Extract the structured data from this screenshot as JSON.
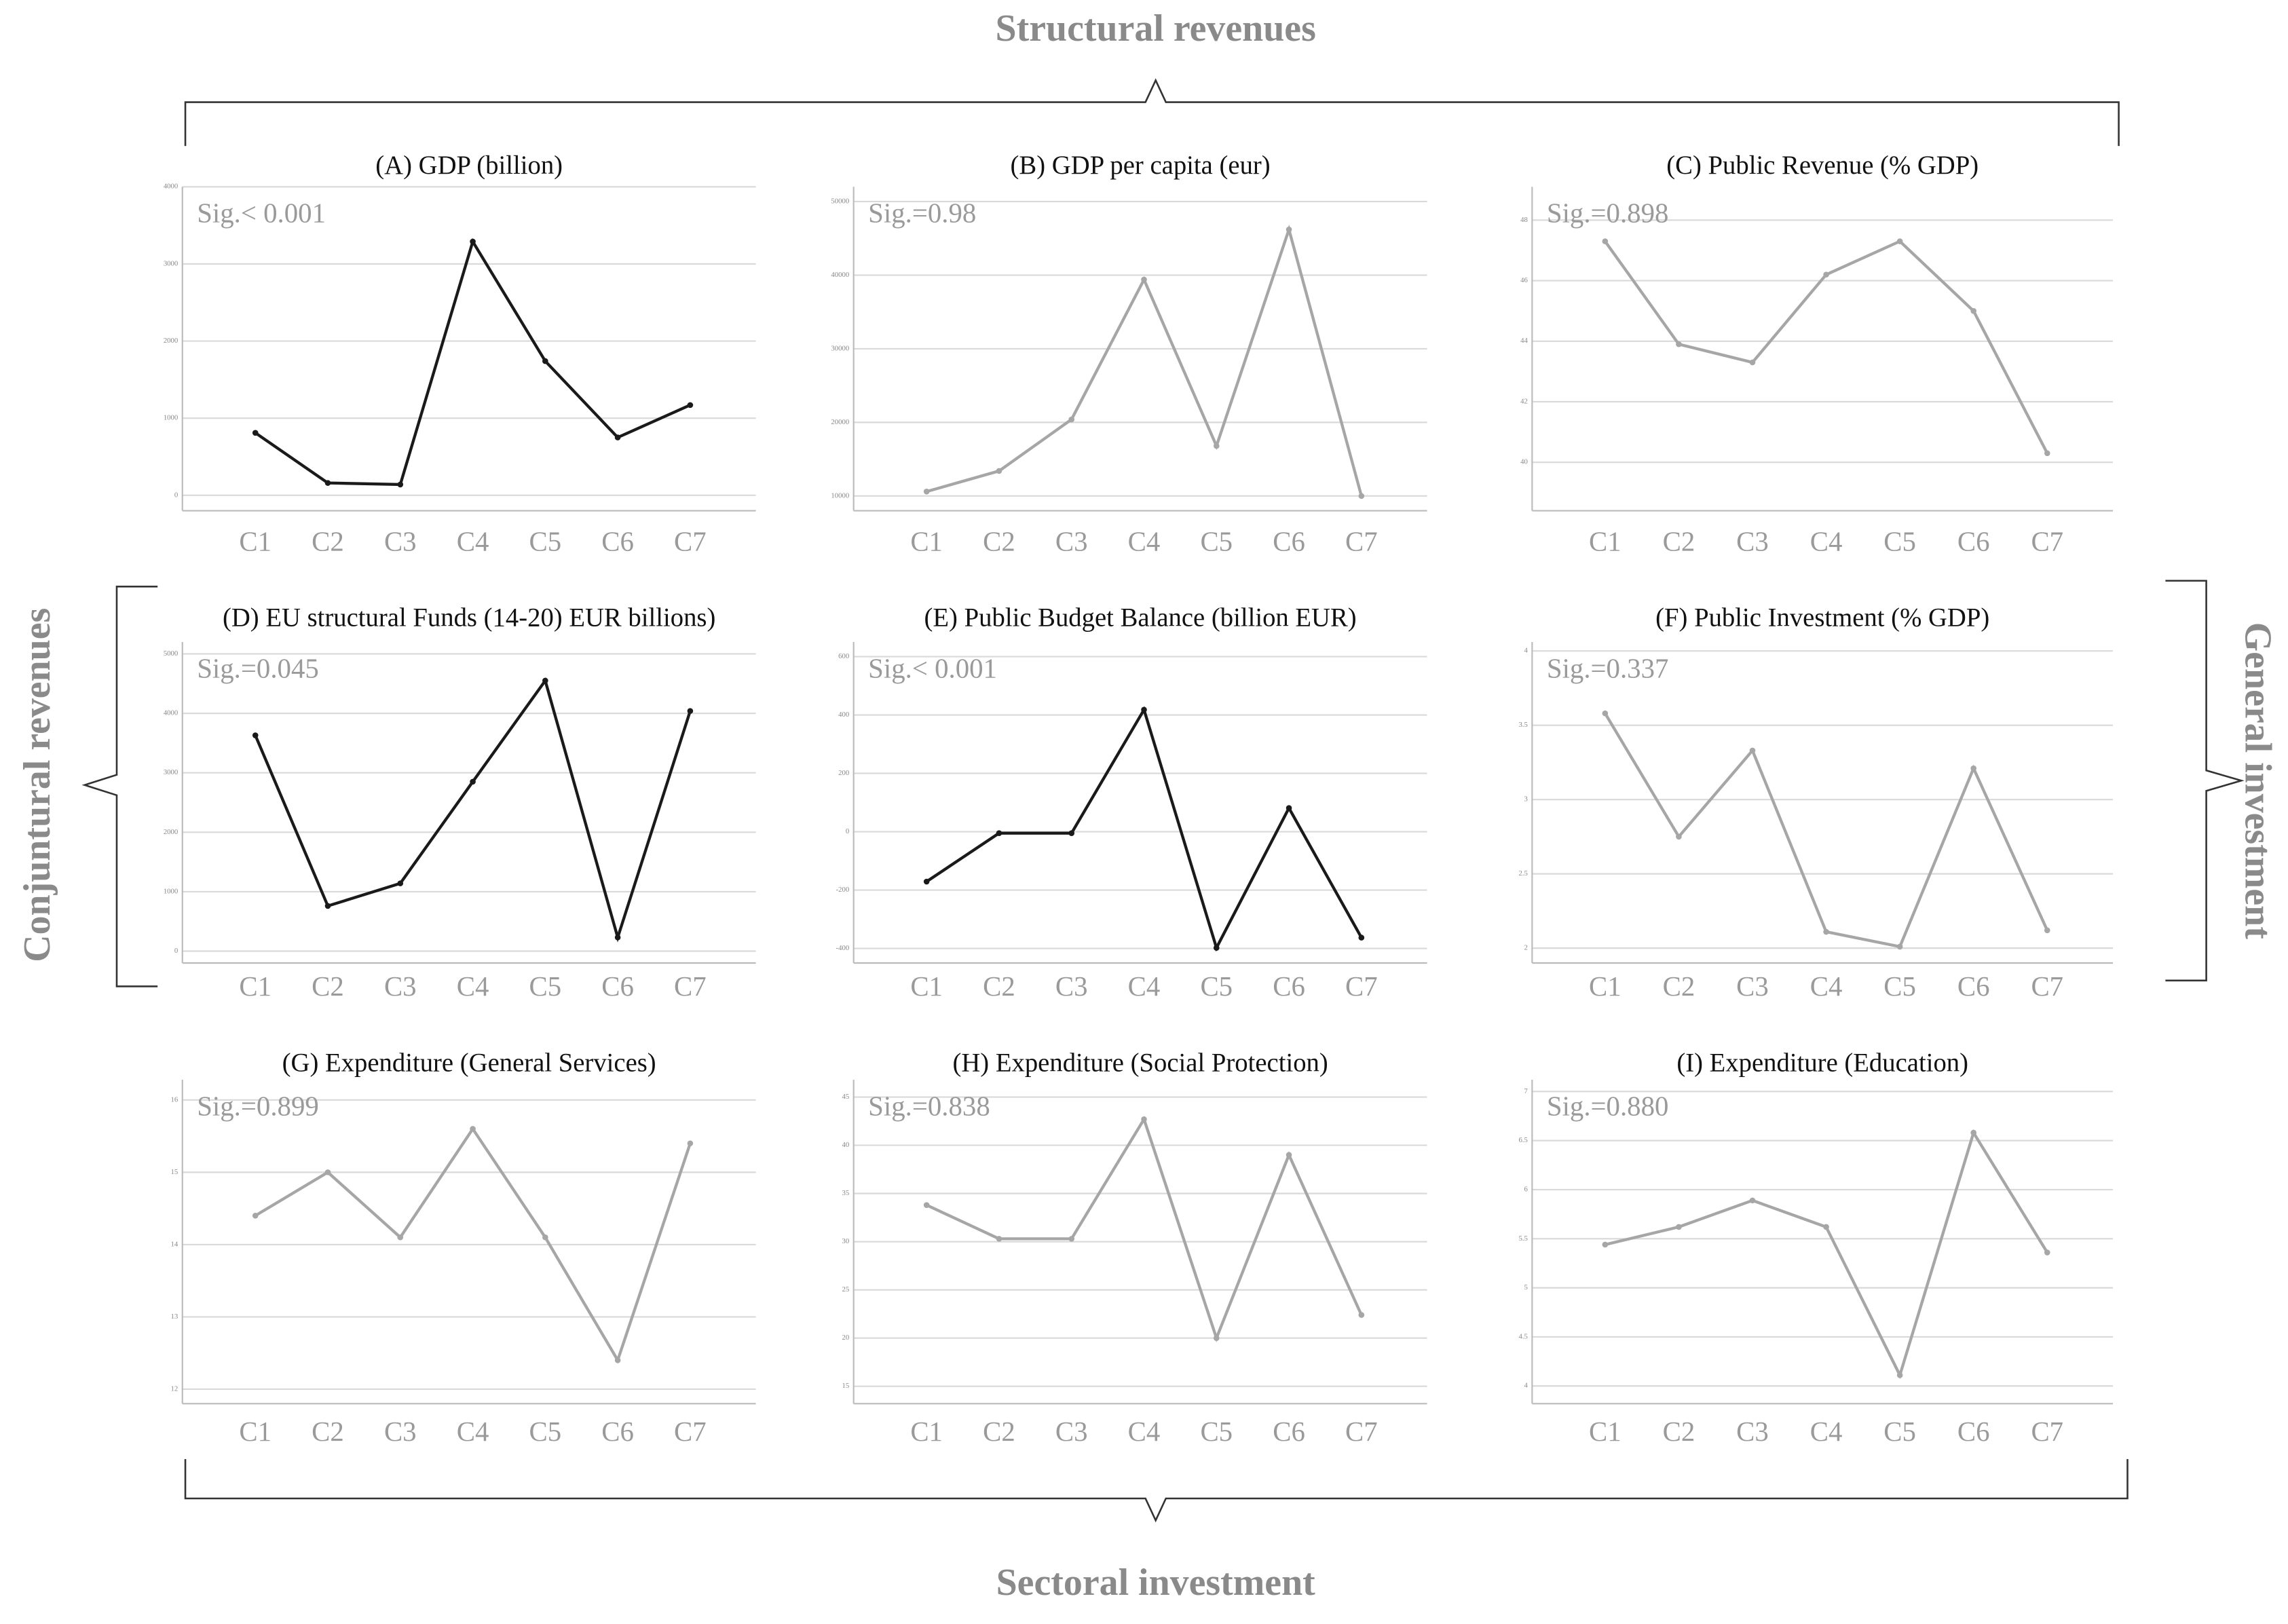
{
  "group_labels": {
    "top": "Structural revenues",
    "left": "Conjuntural revenues",
    "right": "General investment",
    "bottom": "Sectoral investment"
  },
  "chart_data": [
    {
      "type": "line",
      "title": "(A) GDP (billion)",
      "annotation": "Sig.< 0.001",
      "color": "#1a1a1a",
      "categories": [
        "C1",
        "C2",
        "C3",
        "C4",
        "C5",
        "C6",
        "C7"
      ],
      "values": [
        810,
        160,
        140,
        3290,
        1740,
        750,
        1170
      ],
      "ylim": [
        -200,
        4000
      ],
      "yticks": [
        0,
        1000,
        2000,
        3000,
        4000
      ],
      "grid": true
    },
    {
      "type": "line",
      "title": "(B) GDP per capita (eur)",
      "annotation": "Sig.=0.98",
      "color": "#a6a6a6",
      "categories": [
        "C1",
        "C2",
        "C3",
        "C4",
        "C5",
        "C6",
        "C7"
      ],
      "values": [
        10600,
        13400,
        20400,
        39400,
        16800,
        46200,
        10000
      ],
      "ylim": [
        8000,
        52000
      ],
      "yticks": [
        10000,
        20000,
        30000,
        40000,
        50000
      ],
      "grid": true
    },
    {
      "type": "line",
      "title": "(C) Public Revenue (% GDP)",
      "annotation": "Sig.=0.898",
      "color": "#a6a6a6",
      "categories": [
        "C1",
        "C2",
        "C3",
        "C4",
        "C5",
        "C6",
        "C7"
      ],
      "values": [
        47.3,
        43.9,
        43.3,
        46.2,
        47.3,
        45.0,
        40.3
      ],
      "ylim": [
        38.4,
        49.1
      ],
      "yticks": [
        40,
        42,
        44,
        46,
        48
      ],
      "grid": true
    },
    {
      "type": "line",
      "title": "(D) EU structural Funds (14-20) EUR billions)",
      "annotation": "Sig.=0.045",
      "color": "#1a1a1a",
      "categories": [
        "C1",
        "C2",
        "C3",
        "C4",
        "C5",
        "C6",
        "C7"
      ],
      "values": [
        3630,
        760,
        1140,
        2850,
        4550,
        230,
        4040
      ],
      "ylim": [
        -200,
        5200
      ],
      "yticks": [
        0,
        1000,
        2000,
        3000,
        4000,
        5000
      ],
      "grid": true
    },
    {
      "type": "line",
      "title": "(E) Public Budget Balance (billion EUR)",
      "annotation": "Sig.< 0.001",
      "color": "#1a1a1a",
      "categories": [
        "C1",
        "C2",
        "C3",
        "C4",
        "C5",
        "C6",
        "C7"
      ],
      "values": [
        -171,
        -5,
        -5,
        418,
        -398,
        81,
        -363
      ],
      "ylim": [
        -450,
        650
      ],
      "yticks": [
        -400,
        -200,
        0,
        200,
        400,
        600
      ],
      "grid": true
    },
    {
      "type": "line",
      "title": "(F) Public Investment (% GDP)",
      "annotation": "Sig.=0.337",
      "color": "#a6a6a6",
      "categories": [
        "C1",
        "C2",
        "C3",
        "C4",
        "C5",
        "C6",
        "C7"
      ],
      "values": [
        3.58,
        2.75,
        3.33,
        2.11,
        2.01,
        3.21,
        2.12
      ],
      "ylim": [
        1.9,
        4.06
      ],
      "yticks": [
        2,
        2.5,
        3,
        3.5,
        4
      ],
      "grid": true
    },
    {
      "type": "line",
      "title": "(G) Expenditure (General Services)",
      "annotation": "Sig.=0.899",
      "color": "#a6a6a6",
      "categories": [
        "C1",
        "C2",
        "C3",
        "C4",
        "C5",
        "C6",
        "C7"
      ],
      "values": [
        14.4,
        15.0,
        14.1,
        15.6,
        14.1,
        12.4,
        15.4
      ],
      "ylim": [
        11.8,
        16.28
      ],
      "yticks": [
        12,
        13,
        14,
        15,
        16
      ],
      "grid": true
    },
    {
      "type": "line",
      "title": "(H) Expenditure (Social Protection)",
      "annotation": "Sig.=0.838",
      "color": "#a6a6a6",
      "categories": [
        "C1",
        "C2",
        "C3",
        "C4",
        "C5",
        "C6",
        "C7"
      ],
      "values": [
        33.8,
        30.3,
        30.3,
        42.7,
        20.0,
        39.0,
        22.4
      ],
      "ylim": [
        13.2,
        46.8
      ],
      "yticks": [
        15,
        20,
        25,
        30,
        35,
        40,
        45
      ],
      "grid": true
    },
    {
      "type": "line",
      "title": "(I) Expenditure (Education)",
      "annotation": "Sig.=0.880",
      "color": "#a6a6a6",
      "categories": [
        "C1",
        "C2",
        "C3",
        "C4",
        "C5",
        "C6",
        "C7"
      ],
      "values": [
        5.44,
        5.62,
        5.89,
        5.62,
        4.11,
        6.58,
        5.36
      ],
      "ylim": [
        3.82,
        7.12
      ],
      "yticks": [
        4,
        4.5,
        5,
        5.5,
        6,
        6.5,
        7
      ],
      "grid": true
    }
  ]
}
